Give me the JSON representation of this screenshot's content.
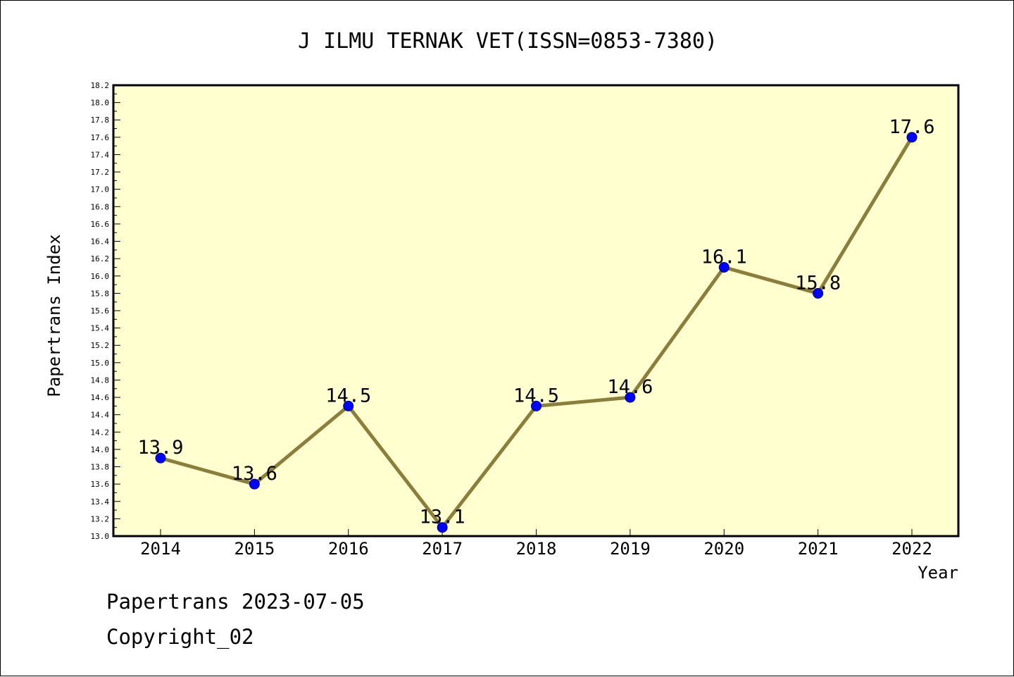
{
  "chart_data": {
    "type": "line",
    "title": "J ILMU TERNAK VET(ISSN=0853-7380)",
    "xlabel": "Year",
    "ylabel": "Papertrans Index",
    "x": [
      "2014",
      "2015",
      "2016",
      "2017",
      "2018",
      "2019",
      "2020",
      "2021",
      "2022"
    ],
    "series": [
      {
        "values": [
          13.9,
          13.6,
          14.5,
          13.1,
          14.5,
          14.6,
          16.1,
          15.8,
          17.6
        ],
        "labels": [
          "13.9",
          "13.6",
          "14.5",
          "13.1",
          "14.5",
          "14.6",
          "16.1",
          "15.8",
          "17.6"
        ]
      }
    ],
    "ylim": [
      13.0,
      18.2
    ],
    "y_ticks": [
      "13.0",
      "13.2",
      "13.4",
      "13.6",
      "13.8",
      "14.0",
      "14.2",
      "14.4",
      "14.6",
      "14.8",
      "15.0",
      "15.2",
      "15.4",
      "15.6",
      "15.8",
      "16.0",
      "16.2",
      "16.4",
      "16.6",
      "16.8",
      "17.0",
      "17.2",
      "17.4",
      "17.6",
      "17.8",
      "18.0",
      "18.2"
    ],
    "grid": false,
    "colors": {
      "plot_background": "#ffffd0",
      "line": "#8b7d3a",
      "marker": "#0000ff"
    }
  },
  "footer": {
    "date_line": "Papertrans 2023-07-05",
    "copyright_line": "Copyright_02"
  }
}
